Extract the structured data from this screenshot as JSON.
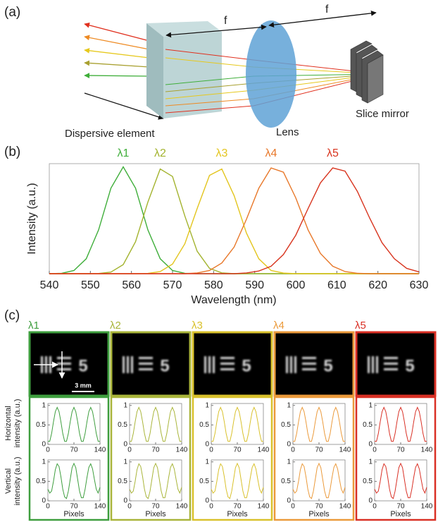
{
  "panel_labels": [
    "(a)",
    "(b)",
    "(c)"
  ],
  "panel_a": {
    "f_left": "f",
    "f_right": "f",
    "dispersive": "Dispersive element",
    "lens": "Lens",
    "mirror": "Slice mirror"
  },
  "chart_data": {
    "type": "line",
    "xlabel": "Wavelength (nm)",
    "ylabel": "Intensity (a.u.)",
    "x": [
      540,
      543,
      546,
      549,
      552,
      555,
      558,
      561,
      564,
      567,
      570,
      573,
      576,
      579,
      582,
      585,
      588,
      591,
      594,
      597,
      600,
      603,
      606,
      609,
      612,
      615,
      618,
      621,
      624,
      627,
      630
    ],
    "xlim": [
      540,
      630
    ],
    "xticks": [
      540,
      550,
      560,
      570,
      580,
      590,
      600,
      610,
      620,
      630
    ],
    "ylim": [
      0,
      1.03
    ],
    "series": [
      {
        "name": "λ1",
        "color": "#3fae3a",
        "values": [
          0,
          0.004,
          0.03,
          0.14,
          0.41,
          0.8,
          1,
          0.8,
          0.41,
          0.14,
          0.03,
          0.004,
          0,
          0,
          0,
          0,
          0,
          0,
          0,
          0,
          0,
          0,
          0,
          0,
          0,
          0,
          0,
          0,
          0,
          0,
          0
        ]
      },
      {
        "name": "λ2",
        "color": "#a3b32e",
        "values": [
          0,
          0,
          0,
          0,
          0.002,
          0.015,
          0.085,
          0.3,
          0.67,
          0.98,
          0.91,
          0.54,
          0.21,
          0.05,
          0.008,
          0,
          0,
          0,
          0,
          0,
          0,
          0,
          0,
          0,
          0,
          0,
          0,
          0,
          0,
          0,
          0
        ]
      },
      {
        "name": "λ3",
        "color": "#e3c51e",
        "values": [
          0,
          0,
          0,
          0,
          0,
          0,
          0,
          0,
          0.003,
          0.02,
          0.09,
          0.28,
          0.61,
          0.92,
          0.98,
          0.73,
          0.38,
          0.14,
          0.03,
          0.006,
          0,
          0,
          0,
          0,
          0,
          0,
          0,
          0,
          0,
          0,
          0
        ]
      },
      {
        "name": "λ4",
        "color": "#e8782a",
        "values": [
          0,
          0,
          0,
          0,
          0,
          0,
          0,
          0,
          0,
          0,
          0,
          0,
          0.007,
          0.03,
          0.1,
          0.25,
          0.51,
          0.8,
          0.99,
          0.95,
          0.71,
          0.41,
          0.19,
          0.07,
          0.02,
          0.004,
          0,
          0,
          0,
          0,
          0
        ]
      },
      {
        "name": "λ5",
        "color": "#d8341e",
        "values": [
          0,
          0,
          0,
          0,
          0,
          0,
          0,
          0,
          0,
          0,
          0,
          0,
          0,
          0,
          0,
          0,
          0.007,
          0.025,
          0.07,
          0.18,
          0.36,
          0.61,
          0.85,
          0.99,
          0.96,
          0.77,
          0.52,
          0.29,
          0.14,
          0.05,
          0.017
        ]
      }
    ]
  },
  "panel_c": {
    "scale_bar": "3 mm",
    "target_digit": "5",
    "xlabel": "Pixels",
    "ylabel_h": [
      "Horizontal",
      "intensity (a.u.)"
    ],
    "ylabel_v": [
      "Vertical",
      "intensity (a.u.)"
    ],
    "profile_x": [
      0,
      5,
      10,
      15,
      20,
      25,
      30,
      35,
      40,
      45,
      50,
      55,
      60,
      65,
      70,
      75,
      80,
      85,
      90,
      95,
      100,
      105,
      110,
      115,
      120,
      125,
      130,
      135,
      140
    ],
    "xlim": [
      0,
      140
    ],
    "xticks": [
      0,
      70,
      140
    ],
    "ylim": [
      0,
      1.05
    ],
    "yticks": [
      0,
      0.5,
      1
    ],
    "columns": [
      {
        "name": "λ1",
        "color": "#3e9e3e",
        "horizontal": [
          0.08,
          0.08,
          0.28,
          0.58,
          0.84,
          0.95,
          0.84,
          0.58,
          0.28,
          0.08,
          0.08,
          0.28,
          0.58,
          0.84,
          0.95,
          0.84,
          0.58,
          0.28,
          0.08,
          0.08,
          0.28,
          0.58,
          0.84,
          0.95,
          0.84,
          0.58,
          0.28,
          0.08,
          0.08
        ],
        "vertical": [
          0.3,
          0.2,
          0.25,
          0.5,
          0.8,
          0.95,
          0.88,
          0.62,
          0.3,
          0.1,
          0.06,
          0.25,
          0.55,
          0.85,
          0.96,
          0.85,
          0.55,
          0.25,
          0.08,
          0.08,
          0.3,
          0.6,
          0.86,
          0.95,
          0.82,
          0.55,
          0.3,
          0.2,
          0.35
        ]
      },
      {
        "name": "λ2",
        "color": "#a9b53a",
        "horizontal": [
          0.08,
          0.08,
          0.28,
          0.58,
          0.84,
          0.95,
          0.84,
          0.58,
          0.28,
          0.08,
          0.08,
          0.28,
          0.58,
          0.84,
          0.95,
          0.84,
          0.58,
          0.28,
          0.08,
          0.08,
          0.28,
          0.58,
          0.84,
          0.95,
          0.84,
          0.58,
          0.28,
          0.08,
          0.08
        ],
        "vertical": [
          0.3,
          0.2,
          0.25,
          0.5,
          0.8,
          0.95,
          0.88,
          0.62,
          0.3,
          0.1,
          0.06,
          0.25,
          0.55,
          0.85,
          0.96,
          0.85,
          0.55,
          0.25,
          0.08,
          0.08,
          0.3,
          0.6,
          0.86,
          0.95,
          0.82,
          0.55,
          0.3,
          0.2,
          0.35
        ]
      },
      {
        "name": "λ3",
        "color": "#d9c12c",
        "horizontal": [
          0.08,
          0.08,
          0.28,
          0.58,
          0.84,
          0.95,
          0.84,
          0.58,
          0.28,
          0.08,
          0.08,
          0.28,
          0.58,
          0.84,
          0.95,
          0.84,
          0.58,
          0.28,
          0.08,
          0.08,
          0.28,
          0.58,
          0.84,
          0.95,
          0.84,
          0.58,
          0.28,
          0.08,
          0.08
        ],
        "vertical": [
          0.3,
          0.2,
          0.25,
          0.5,
          0.8,
          0.95,
          0.88,
          0.62,
          0.3,
          0.1,
          0.06,
          0.25,
          0.55,
          0.85,
          0.96,
          0.85,
          0.55,
          0.25,
          0.08,
          0.08,
          0.3,
          0.6,
          0.86,
          0.95,
          0.82,
          0.55,
          0.3,
          0.2,
          0.35
        ]
      },
      {
        "name": "λ4",
        "color": "#eb9a3b",
        "horizontal": [
          0.08,
          0.08,
          0.28,
          0.58,
          0.84,
          0.95,
          0.84,
          0.58,
          0.28,
          0.08,
          0.08,
          0.28,
          0.58,
          0.84,
          0.95,
          0.84,
          0.58,
          0.28,
          0.08,
          0.08,
          0.28,
          0.58,
          0.84,
          0.95,
          0.84,
          0.58,
          0.28,
          0.08,
          0.08
        ],
        "vertical": [
          0.3,
          0.2,
          0.25,
          0.5,
          0.8,
          0.95,
          0.88,
          0.62,
          0.3,
          0.1,
          0.06,
          0.25,
          0.55,
          0.85,
          0.96,
          0.85,
          0.55,
          0.25,
          0.08,
          0.08,
          0.3,
          0.6,
          0.86,
          0.95,
          0.82,
          0.55,
          0.3,
          0.2,
          0.35
        ]
      },
      {
        "name": "λ5",
        "color": "#d93025",
        "horizontal": [
          0.08,
          0.08,
          0.28,
          0.58,
          0.84,
          0.95,
          0.84,
          0.58,
          0.28,
          0.08,
          0.08,
          0.28,
          0.58,
          0.84,
          0.95,
          0.84,
          0.58,
          0.28,
          0.08,
          0.08,
          0.28,
          0.58,
          0.84,
          0.95,
          0.84,
          0.58,
          0.28,
          0.08,
          0.08
        ],
        "vertical": [
          0.3,
          0.2,
          0.25,
          0.5,
          0.8,
          0.95,
          0.88,
          0.62,
          0.3,
          0.1,
          0.06,
          0.25,
          0.55,
          0.85,
          0.96,
          0.85,
          0.55,
          0.25,
          0.08,
          0.08,
          0.3,
          0.6,
          0.86,
          0.95,
          0.82,
          0.55,
          0.3,
          0.2,
          0.35
        ]
      }
    ]
  }
}
